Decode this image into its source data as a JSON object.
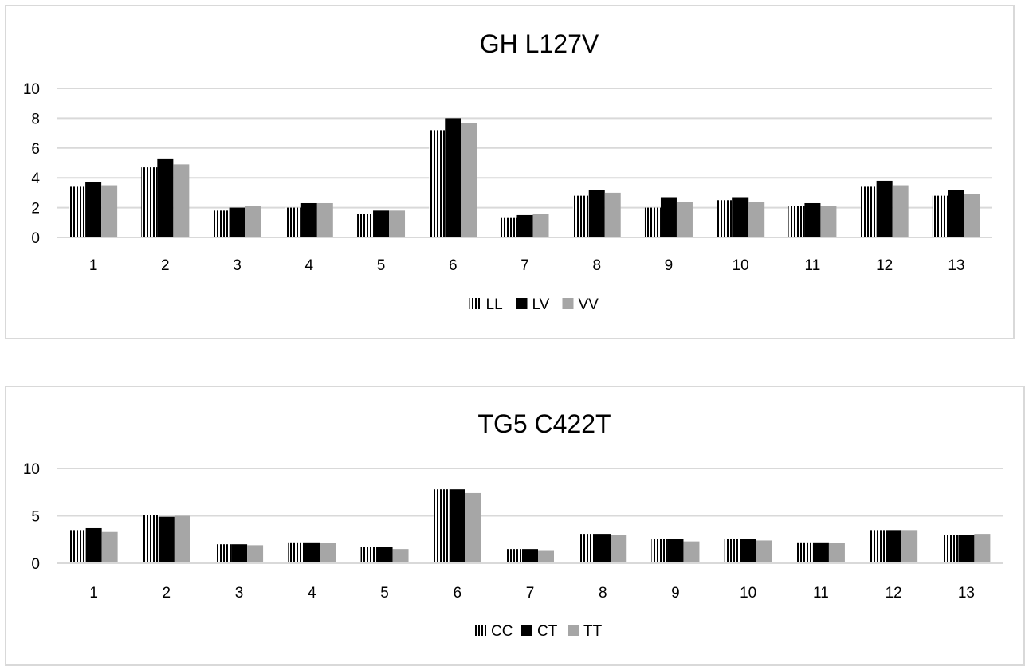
{
  "chart_data": [
    {
      "type": "bar",
      "title": "GH L127V",
      "categories": [
        "1",
        "2",
        "3",
        "4",
        "5",
        "6",
        "7",
        "8",
        "9",
        "10",
        "11",
        "12",
        "13"
      ],
      "ylim": [
        0,
        10
      ],
      "yticks": [
        0,
        2,
        4,
        6,
        8,
        10
      ],
      "grid": true,
      "legend_position": "bottom",
      "series": [
        {
          "name": "LL",
          "pattern": "vertical-stripes",
          "color": "#000000",
          "values": [
            3.4,
            4.7,
            1.8,
            2.0,
            1.6,
            7.2,
            1.3,
            2.8,
            2.0,
            2.5,
            2.1,
            3.4,
            2.8
          ]
        },
        {
          "name": "LV",
          "pattern": "solid",
          "color": "#000000",
          "values": [
            3.7,
            5.3,
            2.0,
            2.3,
            1.8,
            8.0,
            1.5,
            3.2,
            2.7,
            2.7,
            2.3,
            3.8,
            3.2
          ]
        },
        {
          "name": "VV",
          "pattern": "solid",
          "color": "#a6a6a6",
          "values": [
            3.5,
            4.9,
            2.1,
            2.3,
            1.8,
            7.7,
            1.6,
            3.0,
            2.4,
            2.4,
            2.1,
            3.5,
            2.9
          ]
        }
      ]
    },
    {
      "type": "bar",
      "title": "TG5 C422T",
      "categories": [
        "1",
        "2",
        "3",
        "4",
        "5",
        "6",
        "7",
        "8",
        "9",
        "10",
        "11",
        "12",
        "13"
      ],
      "ylim": [
        0,
        10
      ],
      "yticks": [
        0,
        5,
        10
      ],
      "grid": true,
      "legend_position": "bottom",
      "series": [
        {
          "name": "CC",
          "pattern": "vertical-stripes",
          "color": "#000000",
          "values": [
            3.5,
            5.1,
            2.0,
            2.2,
            1.7,
            7.8,
            1.5,
            3.1,
            2.6,
            2.6,
            2.2,
            3.5,
            3.0
          ]
        },
        {
          "name": "CT",
          "pattern": "solid",
          "color": "#000000",
          "values": [
            3.7,
            4.9,
            2.0,
            2.2,
            1.7,
            7.8,
            1.5,
            3.1,
            2.6,
            2.6,
            2.2,
            3.5,
            3.0
          ]
        },
        {
          "name": "TT",
          "pattern": "solid",
          "color": "#a6a6a6",
          "values": [
            3.3,
            5.0,
            1.9,
            2.1,
            1.5,
            7.4,
            1.3,
            3.0,
            2.3,
            2.4,
            2.1,
            3.5,
            3.1
          ]
        }
      ]
    }
  ]
}
